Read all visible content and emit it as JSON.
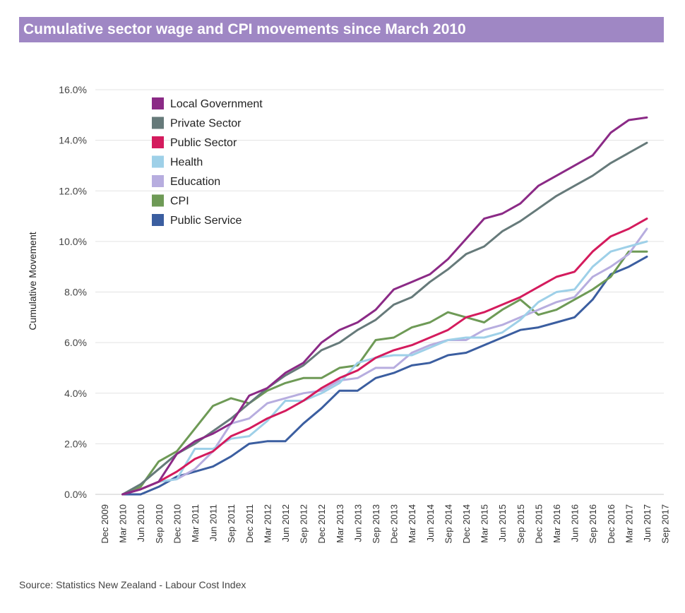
{
  "title": "Cumulative sector wage and CPI movements since March 2010",
  "source": "Source: Statistics New Zealand - Labour Cost Index",
  "chart_data": {
    "type": "line",
    "title": "Cumulative sector wage and CPI movements since March 2010",
    "ylabel": "Cumulative Movement",
    "xlabel": "",
    "ylim": [
      0,
      16
    ],
    "yticks": [
      "0.0%",
      "2.0%",
      "4.0%",
      "6.0%",
      "8.0%",
      "10.0%",
      "12.0%",
      "14.0%",
      "16.0%"
    ],
    "grid": "horizontal",
    "legend_position": "top-left",
    "categories": [
      "Dec 2009",
      "Mar 2010",
      "Jun 2010",
      "Sep 2010",
      "Dec 2010",
      "Mar 2011",
      "Jun 2011",
      "Sep 2011",
      "Dec 2011",
      "Mar 2012",
      "Jun 2012",
      "Sep 2012",
      "Dec 2012",
      "Mar 2013",
      "Jun 2013",
      "Sep 2013",
      "Dec 2013",
      "Mar 2014",
      "Jun 2014",
      "Sep 2014",
      "Dec 2014",
      "Mar 2015",
      "Jun 2015",
      "Sep 2015",
      "Dec 2015",
      "Mar 2016",
      "Jun 2016",
      "Sep 2016",
      "Dec 2016",
      "Mar 2017",
      "Jun 2017",
      "Sep 2017"
    ],
    "series": [
      {
        "name": "Local Government",
        "color": "#8b2a86",
        "values": [
          null,
          0.0,
          0.2,
          0.5,
          1.6,
          2.1,
          2.4,
          2.8,
          3.9,
          4.2,
          4.8,
          5.2,
          6.0,
          6.5,
          6.8,
          7.3,
          8.1,
          8.4,
          8.7,
          9.3,
          10.1,
          10.9,
          11.1,
          11.5,
          12.2,
          12.6,
          13.0,
          13.4,
          14.3,
          14.8,
          14.9,
          null
        ]
      },
      {
        "name": "Private Sector",
        "color": "#667a7a",
        "values": [
          null,
          0.0,
          0.4,
          1.0,
          1.6,
          2.0,
          2.5,
          3.0,
          3.6,
          4.2,
          4.7,
          5.1,
          5.7,
          6.0,
          6.5,
          6.9,
          7.5,
          7.8,
          8.4,
          8.9,
          9.5,
          9.8,
          10.4,
          10.8,
          11.3,
          11.8,
          12.2,
          12.6,
          13.1,
          13.5,
          13.9,
          null
        ]
      },
      {
        "name": "Public Sector",
        "color": "#d41b5d",
        "values": [
          null,
          0.0,
          0.2,
          0.5,
          0.9,
          1.4,
          1.7,
          2.3,
          2.6,
          3.0,
          3.3,
          3.7,
          4.2,
          4.6,
          4.9,
          5.4,
          5.7,
          5.9,
          6.2,
          6.5,
          7.0,
          7.2,
          7.5,
          7.8,
          8.2,
          8.6,
          8.8,
          9.6,
          10.2,
          10.5,
          10.9,
          null
        ]
      },
      {
        "name": "Health",
        "color": "#9ed0e8",
        "values": [
          null,
          0.0,
          0.2,
          0.5,
          0.6,
          1.8,
          1.8,
          2.2,
          2.3,
          2.9,
          3.7,
          3.7,
          4.0,
          4.4,
          5.2,
          5.4,
          5.5,
          5.5,
          5.8,
          6.1,
          6.2,
          6.2,
          6.4,
          6.9,
          7.6,
          8.0,
          8.1,
          9.0,
          9.6,
          9.8,
          10.0,
          null
        ]
      },
      {
        "name": "Education",
        "color": "#b7addf",
        "values": [
          null,
          0.0,
          0.2,
          0.5,
          0.6,
          1.0,
          1.7,
          2.8,
          3.0,
          3.6,
          3.8,
          4.0,
          4.1,
          4.5,
          4.6,
          5.0,
          5.0,
          5.6,
          5.9,
          6.1,
          6.1,
          6.5,
          6.7,
          7.0,
          7.3,
          7.6,
          7.8,
          8.6,
          9.0,
          9.5,
          10.5,
          null
        ]
      },
      {
        "name": "CPI",
        "color": "#6e9a56",
        "values": [
          null,
          0.0,
          0.3,
          1.3,
          1.7,
          2.6,
          3.5,
          3.8,
          3.6,
          4.1,
          4.4,
          4.6,
          4.6,
          5.0,
          5.1,
          6.1,
          6.2,
          6.6,
          6.8,
          7.2,
          7.0,
          6.8,
          7.3,
          7.7,
          7.1,
          7.3,
          7.7,
          8.1,
          8.6,
          9.6,
          9.6,
          null
        ]
      },
      {
        "name": "Public Service",
        "color": "#3b5ea0",
        "values": [
          null,
          0.0,
          0.0,
          0.3,
          0.7,
          0.9,
          1.1,
          1.5,
          2.0,
          2.1,
          2.1,
          2.8,
          3.4,
          4.1,
          4.1,
          4.6,
          4.8,
          5.1,
          5.2,
          5.5,
          5.6,
          5.9,
          6.2,
          6.5,
          6.6,
          6.8,
          7.0,
          7.7,
          8.7,
          9.0,
          9.4,
          null
        ]
      }
    ]
  }
}
